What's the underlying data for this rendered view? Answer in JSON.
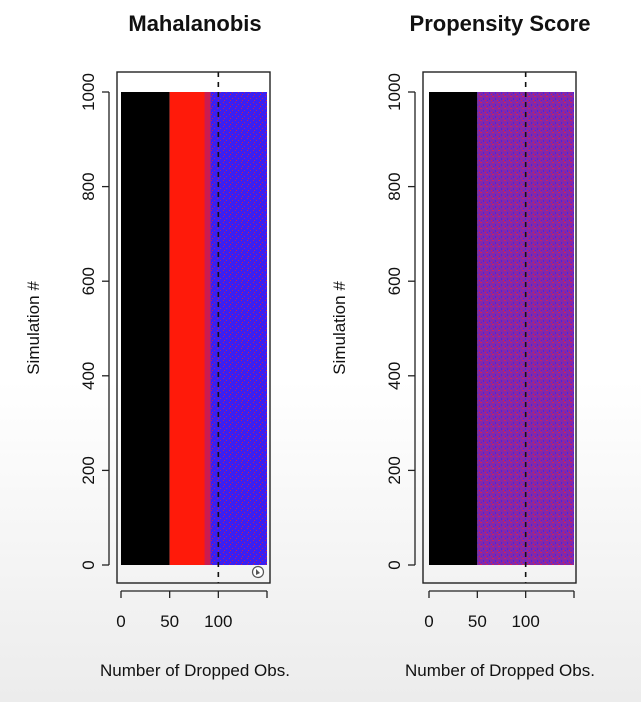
{
  "chart_data": [
    {
      "type": "heatmap",
      "title": "Mahalanobis",
      "xlabel": "Number of Dropped Obs.",
      "ylabel": "Simulation #",
      "xlim": [
        0,
        150
      ],
      "ylim": [
        0,
        1000
      ],
      "xticks": [
        0,
        50,
        100
      ],
      "yticks": [
        0,
        200,
        400,
        600,
        800,
        1000
      ],
      "reference_line": {
        "x": 100,
        "style": "dashed"
      },
      "bands": [
        {
          "x0": 0,
          "x1": 50,
          "color": "#000000",
          "description": "black"
        },
        {
          "x0": 50,
          "x1": 92,
          "color": "#ff1a0a",
          "description": "red"
        },
        {
          "x0": 92,
          "x1": 150,
          "color": "#3c1ef0",
          "description": "blue with red speckle"
        }
      ]
    },
    {
      "type": "heatmap",
      "title": "Propensity Score",
      "xlabel": "Number of Dropped Obs.",
      "ylabel": "Simulation #",
      "xlim": [
        0,
        150
      ],
      "ylim": [
        0,
        1000
      ],
      "xticks": [
        0,
        50,
        100
      ],
      "yticks": [
        0,
        200,
        400,
        600,
        800,
        1000
      ],
      "reference_line": {
        "x": 100,
        "style": "dashed"
      },
      "bands": [
        {
          "x0": 0,
          "x1": 50,
          "color": "#000000",
          "description": "black"
        },
        {
          "x0": 50,
          "x1": 150,
          "color": "#8a2aa0",
          "description": "mixed red/blue"
        }
      ]
    }
  ]
}
